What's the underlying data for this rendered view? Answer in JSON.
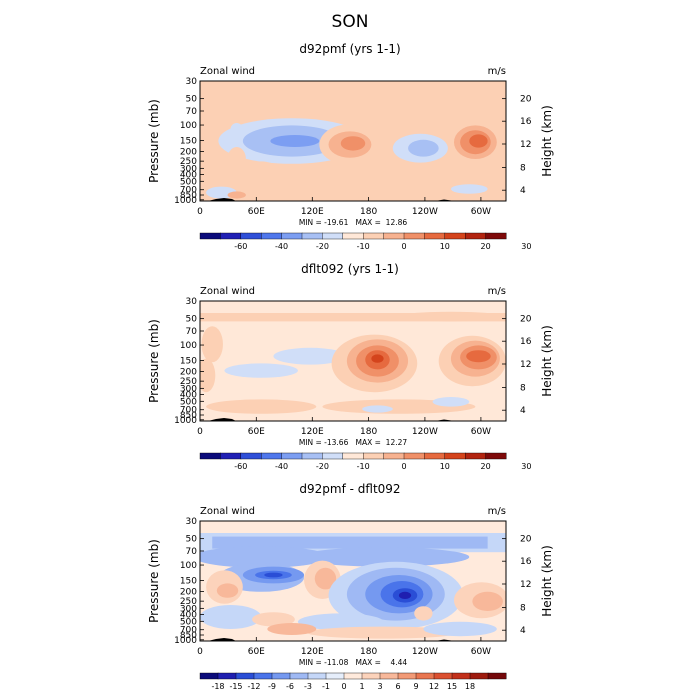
{
  "title": "SON",
  "colorbar_default": {
    "colors": [
      "#0b0b7a",
      "#2020b4",
      "#2f4fd8",
      "#4f77ec",
      "#7c9ef2",
      "#a8c0f4",
      "#d0def8",
      "#ffe8d8",
      "#fcd0b4",
      "#f7b290",
      "#f09068",
      "#e66a3f",
      "#d4441c",
      "#b22410",
      "#7e0a0a"
    ],
    "labels": [
      "-60",
      "-40",
      "-20",
      "-10",
      "0",
      "10",
      "20",
      "30"
    ]
  },
  "colorbar_diff": {
    "colors": [
      "#0b0b7a",
      "#1f1fb0",
      "#2a4ed6",
      "#4a74ea",
      "#7599f0",
      "#9fb9f4",
      "#c5d7f8",
      "#e6eefb",
      "#ffeadc",
      "#fcd3bb",
      "#f8b89a",
      "#f29a76",
      "#e97650",
      "#db5030",
      "#c2301a",
      "#9e1b0e",
      "#74080a"
    ],
    "labels": [
      "-18",
      "-15",
      "-12",
      "-9",
      "-6",
      "-3",
      "-1",
      "0",
      "1",
      "3",
      "6",
      "9",
      "12",
      "15",
      "18"
    ]
  },
  "chart_data": [
    {
      "type": "heatmap",
      "title": "d92pmf (yrs 1-1)",
      "left_label": "Zonal wind",
      "right_label": "m/s",
      "ylabel": "Pressure (mb)",
      "y2label": "Height (km)",
      "x_ticks": [
        "0",
        "60E",
        "120E",
        "180",
        "120W",
        "60W"
      ],
      "y_ticks": [
        "30",
        "50",
        "70",
        "100",
        "150",
        "200",
        "250",
        "300",
        "400",
        "500",
        "700",
        "850",
        "1000"
      ],
      "y2_ticks": [
        "20",
        "16",
        "12",
        "8",
        "4"
      ],
      "stats": "MIN = -19.61   MAX =  12.86",
      "min": -19.61,
      "max": 12.86,
      "colorbar": "default"
    },
    {
      "type": "heatmap",
      "title": "dflt092 (yrs 1-1)",
      "left_label": "Zonal wind",
      "right_label": "m/s",
      "ylabel": "Pressure (mb)",
      "y2label": "Height (km)",
      "x_ticks": [
        "0",
        "60E",
        "120E",
        "180",
        "120W",
        "60W"
      ],
      "y_ticks": [
        "30",
        "50",
        "70",
        "100",
        "150",
        "200",
        "250",
        "300",
        "400",
        "500",
        "700",
        "850",
        "1000"
      ],
      "y2_ticks": [
        "20",
        "16",
        "12",
        "8",
        "4"
      ],
      "stats": "MIN = -13.66   MAX =  12.27",
      "min": -13.66,
      "max": 12.27,
      "colorbar": "default"
    },
    {
      "type": "heatmap",
      "title": "d92pmf - dflt092",
      "left_label": "Zonal wind",
      "right_label": "m/s",
      "ylabel": "Pressure (mb)",
      "y2label": "Height (km)",
      "x_ticks": [
        "0",
        "60E",
        "120E",
        "180",
        "120W",
        "60W"
      ],
      "y_ticks": [
        "30",
        "50",
        "70",
        "100",
        "150",
        "200",
        "250",
        "300",
        "400",
        "500",
        "700",
        "850",
        "1000"
      ],
      "y2_ticks": [
        "20",
        "16",
        "12",
        "8",
        "4"
      ],
      "stats": "MIN = -11.08   MAX =    4.44",
      "min": -11.08,
      "max": 4.44,
      "colorbar": "diff"
    }
  ]
}
